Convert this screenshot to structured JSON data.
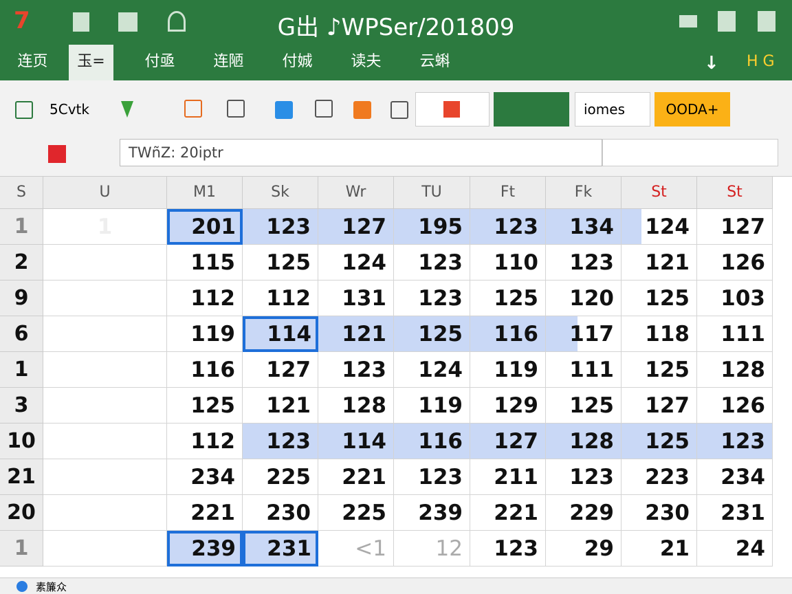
{
  "title_bar": {
    "app_number": "7",
    "title": "G出 ♪WPSer/201809"
  },
  "menu": {
    "tabs": [
      "连页",
      "玉=",
      "付亟",
      "连陋",
      "付娍",
      "读夫",
      "云蝌"
    ],
    "right": "H G"
  },
  "toolbar": {
    "font": "5Cvtk",
    "box_label": "iomes",
    "button": "OODA+"
  },
  "formula_bar": {
    "text": "TWñZ: 20iptr"
  },
  "sheet": {
    "corner": "S",
    "columns": [
      "U",
      "M1",
      "Sk",
      "Wr",
      "TU",
      "Ft",
      "Fk",
      "St",
      "St"
    ],
    "first_row_u": "1",
    "rows": [
      {
        "header": "1",
        "values": [
          201,
          123,
          127,
          195,
          123,
          134,
          124,
          127
        ]
      },
      {
        "header": "2",
        "values": [
          115,
          125,
          124,
          123,
          110,
          123,
          121,
          126
        ]
      },
      {
        "header": "9",
        "values": [
          112,
          112,
          131,
          123,
          125,
          120,
          125,
          103
        ]
      },
      {
        "header": "6",
        "values": [
          119,
          114,
          121,
          125,
          116,
          117,
          118,
          111
        ]
      },
      {
        "header": "1",
        "values": [
          116,
          127,
          123,
          124,
          119,
          111,
          125,
          128
        ]
      },
      {
        "header": "3",
        "values": [
          125,
          121,
          128,
          119,
          129,
          125,
          127,
          126
        ]
      },
      {
        "header": "10",
        "values": [
          112,
          123,
          114,
          116,
          127,
          128,
          125,
          123
        ]
      },
      {
        "header": "21",
        "values": [
          234,
          225,
          221,
          123,
          211,
          123,
          223,
          234
        ]
      },
      {
        "header": "20",
        "values": [
          221,
          230,
          225,
          239,
          221,
          229,
          230,
          231
        ]
      },
      {
        "header": "1",
        "values": [
          239,
          231,
          "<1",
          12,
          123,
          29,
          21,
          24
        ]
      }
    ]
  },
  "status_bar": {
    "text": "素簾众"
  }
}
